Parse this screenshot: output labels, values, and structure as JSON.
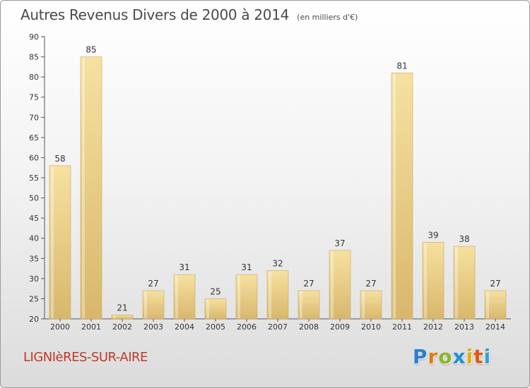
{
  "title": "Autres Revenus Divers de 2000 à 2014",
  "subtitle": "(en milliers d'€)",
  "city": "LIGNIèRES-SUR-AIRE",
  "logo": {
    "letters": [
      "P",
      "r",
      "o",
      "x",
      "i",
      "t",
      "i"
    ],
    "colors": [
      "#2a7fd4",
      "#e07b10",
      "#8ab52e",
      "#1e8fd6",
      "#e0b000",
      "#e05a10",
      "#33a0d8"
    ]
  },
  "colors": {
    "bar_light": "#f6e1a0",
    "bar_dark": "#d8b76c",
    "bar_edge": "#c9a862",
    "city": "#c0392b"
  },
  "chart_data": {
    "type": "bar",
    "title": "Autres Revenus Divers de 2000 à 2014",
    "subtitle": "(en milliers d'€)",
    "categories": [
      "2000",
      "2001",
      "2002",
      "2003",
      "2004",
      "2005",
      "2006",
      "2007",
      "2008",
      "2009",
      "2010",
      "2011",
      "2012",
      "2013",
      "2014"
    ],
    "values": [
      58,
      85,
      21,
      27,
      31,
      25,
      31,
      32,
      27,
      37,
      27,
      81,
      39,
      38,
      27
    ],
    "ylim": [
      20,
      90
    ],
    "yticks": [
      20,
      25,
      30,
      35,
      40,
      45,
      50,
      55,
      60,
      65,
      70,
      75,
      80,
      85,
      90
    ],
    "xlabel": "",
    "ylabel": "",
    "grid": false,
    "data_labels": true
  }
}
